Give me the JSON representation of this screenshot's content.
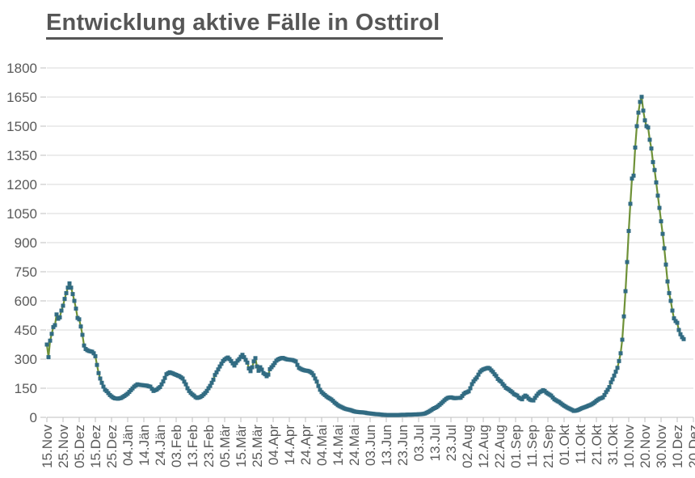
{
  "title": "Entwicklung aktive Fälle in Osttirol",
  "chart_data": {
    "type": "line",
    "title": "Entwicklung aktive Fälle in Osttirol",
    "legend": "none",
    "grid": "horizontal",
    "ylim": [
      0,
      1800
    ],
    "y_axis": {
      "ticks": [
        0,
        150,
        300,
        450,
        600,
        750,
        900,
        1050,
        1200,
        1350,
        1500,
        1650,
        1800
      ]
    },
    "x_axis": {
      "tick_step_days": 10,
      "tick_labels": [
        "15.Nov",
        "25.Nov",
        "05.Dez",
        "15.Dez",
        "25.Dez",
        "04.Jän",
        "14.Jän",
        "24.Jän",
        "03.Feb",
        "13.Feb",
        "23.Feb",
        "05.Mär",
        "15.Mär",
        "25.Mär",
        "04.Apr",
        "14.Apr",
        "24.Apr",
        "04.Mai",
        "14.Mai",
        "24.Mai",
        "03.Jun",
        "13.Jun",
        "23.Jun",
        "03.Jul",
        "13.Jul",
        "23.Jul",
        "02.Aug",
        "12.Aug",
        "22.Aug",
        "01.Sep",
        "11.Sep",
        "21.Sep",
        "01.Okt",
        "11.Okt",
        "21.Okt",
        "31.Okt",
        "10.Nov",
        "20.Nov",
        "30.Nov",
        "10.Dez",
        "20.Dez"
      ]
    },
    "series": [
      {
        "name": "aktive Fälle",
        "start_day_label": "15.Nov",
        "step_days": 1,
        "values": [
          375,
          310,
          395,
          430,
          465,
          475,
          530,
          508,
          515,
          550,
          575,
          610,
          640,
          668,
          690,
          668,
          635,
          600,
          560,
          512,
          505,
          468,
          425,
          370,
          352,
          346,
          342,
          340,
          338,
          330,
          315,
          270,
          228,
          200,
          178,
          158,
          142,
          135,
          125,
          115,
          108,
          102,
          98,
          97,
          96,
          98,
          100,
          105,
          110,
          116,
          122,
          131,
          140,
          149,
          158,
          164,
          170,
          168,
          167,
          166,
          165,
          164,
          163,
          160,
          158,
          147,
          136,
          140,
          143,
          150,
          156,
          170,
          185,
          203,
          222,
          227,
          232,
          229,
          226,
          222,
          219,
          215,
          212,
          206,
          200,
          184,
          170,
          150,
          136,
          126,
          118,
          112,
          104,
          100,
          102,
          105,
          110,
          118,
          126,
          136,
          150,
          162,
          178,
          194,
          218,
          232,
          247,
          262,
          276,
          290,
          298,
          304,
          308,
          300,
          290,
          278,
          267,
          280,
          292,
          300,
          312,
          322,
          310,
          296,
          282,
          252,
          238,
          258,
          288,
          305,
          262,
          240,
          258,
          246,
          228,
          222,
          212,
          220,
          248,
          258,
          268,
          280,
          292,
          298,
          302,
          305,
          306,
          303,
          300,
          298,
          297,
          296,
          295,
          292,
          288,
          270,
          255,
          250,
          246,
          243,
          241,
          240,
          238,
          234,
          228,
          217,
          200,
          184,
          162,
          142,
          130,
          122,
          115,
          108,
          102,
          97,
          92,
          85,
          76,
          70,
          63,
          58,
          54,
          50,
          46,
          43,
          41,
          39,
          37,
          34,
          31,
          29,
          28,
          27,
          26,
          26,
          25,
          24,
          22,
          21,
          20,
          19,
          18,
          17,
          16,
          16,
          15,
          14,
          13,
          13,
          12,
          12,
          12,
          12,
          12,
          12,
          12,
          12,
          12,
          13,
          13,
          13,
          13,
          14,
          14,
          14,
          14,
          15,
          15,
          15,
          16,
          16,
          17,
          18,
          20,
          24,
          28,
          33,
          38,
          44,
          48,
          52,
          58,
          65,
          72,
          80,
          88,
          95,
          100,
          102,
          103,
          101,
          99,
          99,
          100,
          100,
          101,
          110,
          121,
          127,
          130,
          134,
          150,
          171,
          185,
          196,
          205,
          220,
          234,
          242,
          247,
          250,
          253,
          255,
          251,
          242,
          234,
          222,
          213,
          198,
          190,
          184,
          172,
          163,
          152,
          147,
          142,
          135,
          129,
          120,
          116,
          112,
          102,
          97,
          93,
          105,
          112,
          107,
          97,
          91,
          88,
          87,
          100,
          112,
          122,
          130,
          134,
          140,
          136,
          128,
          122,
          117,
          112,
          102,
          93,
          88,
          83,
          79,
          72,
          66,
          60,
          55,
          50,
          46,
          42,
          38,
          33,
          34,
          36,
          39,
          43,
          47,
          50,
          53,
          56,
          60,
          63,
          67,
          72,
          78,
          85,
          91,
          96,
          99,
          103,
          115,
          130,
          142,
          156,
          180,
          196,
          215,
          235,
          255,
          290,
          330,
          400,
          520,
          650,
          800,
          960,
          1100,
          1230,
          1245,
          1390,
          1500,
          1570,
          1625,
          1651,
          1580,
          1530,
          1500,
          1493,
          1430,
          1385,
          1315,
          1274,
          1210,
          1142,
          1079,
          1010,
          945,
          871,
          787,
          700,
          640,
          600,
          550,
          510,
          496,
          487,
          450,
          428,
          413,
          403
        ]
      }
    ],
    "colors": {
      "line": "#6E9137",
      "marker": "#316B82",
      "grid": "#D9D9D9",
      "axis": "#BFBFBF",
      "text": "#595959",
      "title": "#565656",
      "background": "#FFFFFF"
    }
  }
}
